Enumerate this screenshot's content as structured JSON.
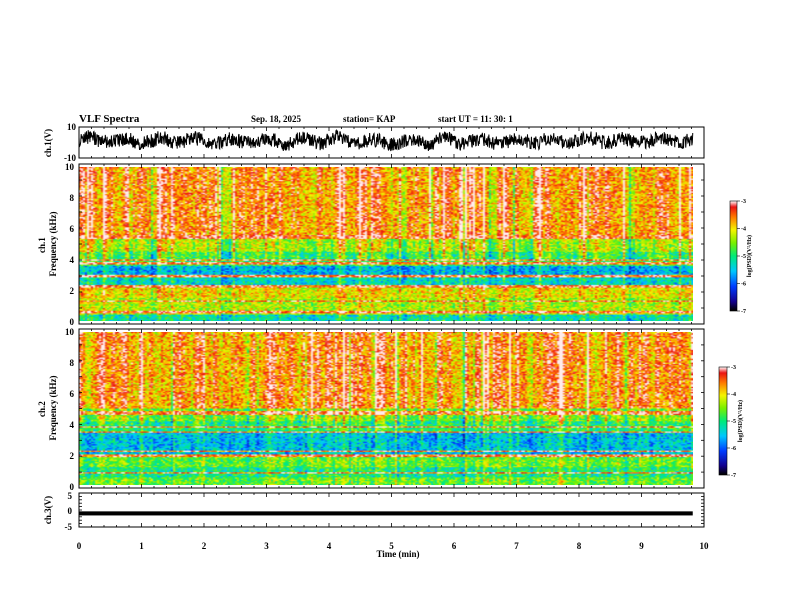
{
  "header": {
    "title": "VLF Spectra",
    "date": "Sep. 18, 2025",
    "station": "station= KAP",
    "start": "start UT =  11: 30: 1"
  },
  "chart_data": [
    {
      "type": "line",
      "name": "ch1-waveform",
      "ylabel": "ch.1(V)",
      "ylim": [
        -10,
        10
      ],
      "yticks": [
        "10",
        "-10"
      ],
      "xlim": [
        0,
        10
      ],
      "duration_min": 9.82,
      "note": "dense waveform trace, roughly between -6 and 8 V"
    },
    {
      "type": "heatmap",
      "name": "ch1-spectrogram",
      "ylabel": "ch.1\nFrequency (kHz)",
      "ylim": [
        0,
        10
      ],
      "yticks": [
        "0",
        "2",
        "4",
        "6",
        "8",
        "10"
      ],
      "xlim": [
        0,
        10
      ],
      "duration_min": 9.82,
      "colorbar": {
        "label": "log(PSD)(V²/Hz)",
        "range": [
          -7,
          -3
        ],
        "ticks": [
          "-3",
          "-4",
          "-5",
          "-6",
          "-7"
        ]
      },
      "bands_kHz": [
        {
          "from": 0.0,
          "to": 0.4,
          "level": -5.2
        },
        {
          "from": 0.4,
          "to": 1.5,
          "level": -4.3
        },
        {
          "from": 1.5,
          "to": 2.2,
          "level": -4.0
        },
        {
          "from": 2.2,
          "to": 3.0,
          "level": -5.3
        },
        {
          "from": 3.0,
          "to": 3.6,
          "level": -5.6
        },
        {
          "from": 3.6,
          "to": 4.5,
          "level": -4.8
        },
        {
          "from": 4.5,
          "to": 5.5,
          "level": -4.3
        },
        {
          "from": 5.5,
          "to": 10.0,
          "level": -3.6
        }
      ],
      "lines_kHz": [
        0.6,
        1.3,
        2.25,
        2.9,
        3.75,
        3.95,
        5.4,
        5.55
      ]
    },
    {
      "type": "heatmap",
      "name": "ch2-spectrogram",
      "ylabel": "ch.2\nFrequency (kHz)",
      "ylim": [
        0,
        10
      ],
      "yticks": [
        "0",
        "2",
        "4",
        "6",
        "8",
        "10"
      ],
      "xlim": [
        0,
        10
      ],
      "duration_min": 9.82,
      "colorbar": {
        "label": "log(PSD)(V²/Hz)",
        "range": [
          -7,
          -3
        ],
        "ticks": [
          "-3",
          "-4",
          "-5",
          "-6",
          "-7"
        ]
      },
      "bands_kHz": [
        {
          "from": 0.0,
          "to": 0.5,
          "level": -4.6
        },
        {
          "from": 0.5,
          "to": 1.2,
          "level": -5.0
        },
        {
          "from": 1.2,
          "to": 2.0,
          "level": -4.6
        },
        {
          "from": 2.0,
          "to": 3.4,
          "level": -5.5
        },
        {
          "from": 3.4,
          "to": 4.2,
          "level": -4.9
        },
        {
          "from": 4.2,
          "to": 5.0,
          "level": -4.5
        },
        {
          "from": 5.0,
          "to": 10.0,
          "level": -3.6
        }
      ],
      "lines_kHz": [
        0.8,
        1.9,
        2.2,
        3.45,
        3.8,
        4.65,
        4.8
      ]
    },
    {
      "type": "line",
      "name": "ch3-waveform",
      "ylabel": "ch.3(V)",
      "ylim": [
        -5,
        5
      ],
      "yticks": [
        "5",
        "0",
        "-5"
      ],
      "xlim": [
        0,
        10
      ],
      "duration_min": 9.82,
      "band": [
        -1.6,
        -0.4
      ],
      "note": "thick flat band around -1 V"
    }
  ],
  "xaxis": {
    "label": "Time (min)",
    "ticks": [
      "0",
      "1",
      "2",
      "3",
      "4",
      "5",
      "6",
      "7",
      "8",
      "9",
      "10"
    ]
  }
}
